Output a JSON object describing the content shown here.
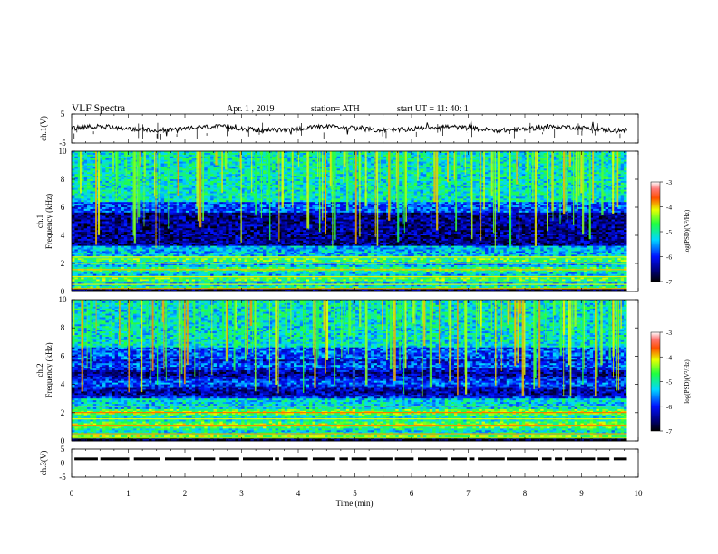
{
  "header": {
    "title": "VLF  Spectra",
    "date": "Apr. 1  , 2019",
    "station": "station= ATH",
    "start": "start  UT  =    11: 40: 1"
  },
  "chart_data": [
    {
      "type": "line",
      "panel": "ch1-waveform",
      "ylabel": "ch.1(V)",
      "ylim": [
        -5,
        5
      ],
      "yticks": [
        "5",
        "-5"
      ],
      "xlim": [
        0,
        10
      ],
      "x_end": 9.8,
      "baseline": 0.0,
      "noise": "dense black trace near 0 V"
    },
    {
      "type": "heatmap",
      "panel": "ch1-spectrogram",
      "ylabel": "ch.1\nFrequency (kHz)",
      "ylabel_lines": [
        "ch.1",
        "Frequency (kHz)"
      ],
      "ylim": [
        0,
        10
      ],
      "yticks": [
        "0",
        "2",
        "4",
        "6",
        "8",
        "10"
      ],
      "xlim": [
        0,
        10
      ],
      "x_end": 9.8,
      "colorbar": {
        "label": "log(PSD)(V²/Hz)",
        "range": [
          -7,
          -3
        ],
        "ticks": [
          "-3",
          "-4",
          "-5",
          "-6",
          "-7"
        ]
      }
    },
    {
      "type": "heatmap",
      "panel": "ch2-spectrogram",
      "ylabel": "ch.2\nFrequency (kHz)",
      "ylabel_lines": [
        "ch.2",
        "Frequency (kHz)"
      ],
      "ylim": [
        0,
        10
      ],
      "yticks": [
        "0",
        "2",
        "4",
        "6",
        "8",
        "10"
      ],
      "xlim": [
        0,
        10
      ],
      "x_end": 9.8,
      "colorbar": {
        "label": "log(PSD)(V²/Hz)",
        "range": [
          -7,
          -3
        ],
        "ticks": [
          "-3",
          "-4",
          "-5",
          "-6",
          "-7"
        ]
      }
    },
    {
      "type": "line",
      "panel": "ch3-waveform",
      "ylabel": "ch.3(V)",
      "ylim": [
        -5,
        5
      ],
      "yticks": [
        "5",
        "0",
        "-5"
      ],
      "xlim": [
        0,
        10
      ],
      "x_end": 9.8,
      "baseline": 0.0,
      "xlabel": "Time  (min)",
      "xticks": [
        "0",
        "1",
        "2",
        "3",
        "4",
        "5",
        "6",
        "7",
        "8",
        "9",
        "10"
      ]
    }
  ]
}
